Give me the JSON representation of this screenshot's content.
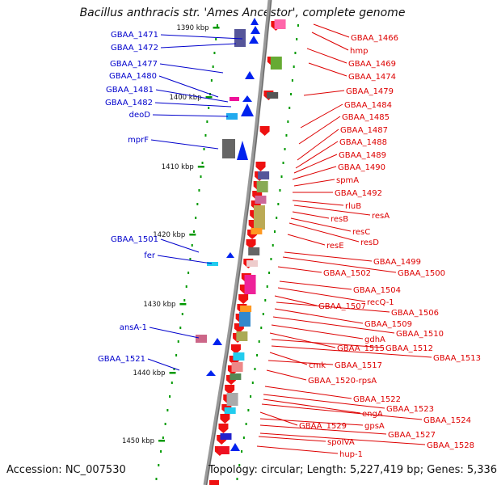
{
  "title": "Bacillus anthracis str. 'Ames Ancestor', complete genome",
  "accession_label": "Accession: NC_007530",
  "topology_label": "Topology: circular; Length: 5,227,419 bp; Genes: 5,336",
  "colors": {
    "backbone": "#888888",
    "tick": "#009900",
    "forward_text": "#0000cc",
    "reverse_text": "#dd0000",
    "forward_gene": "#0022ee",
    "reverse_gene": "#ee1111"
  },
  "scale": {
    "tick_labels": [
      "1390 kbp",
      "1400 kbp",
      "1410 kbp",
      "1420 kbp",
      "1430 kbp",
      "1440 kbp",
      "1450 kbp"
    ]
  },
  "forward_labels": [
    "GBAA_1471",
    "GBAA_1472",
    "GBAA_1477",
    "GBAA_1480",
    "GBAA_1481",
    "GBAA_1482",
    "deoD",
    "mprF",
    "GBAA_1501",
    "fer",
    "ansA-1",
    "GBAA_1521"
  ],
  "reverse_labels": [
    "GBAA_1466",
    "hmp",
    "GBAA_1469",
    "GBAA_1474",
    "GBAA_1479",
    "GBAA_1484",
    "GBAA_1485",
    "GBAA_1487",
    "GBAA_1488",
    "GBAA_1489",
    "GBAA_1490",
    "spmA",
    "GBAA_1492",
    "rluB",
    "resA",
    "resB",
    "resC",
    "resD",
    "resE",
    "GBAA_1499",
    "GBAA_1500",
    "GBAA_1502",
    "GBAA_1504",
    "recQ-1",
    "GBAA_1507",
    "GBAA_1506",
    "GBAA_1509",
    "GBAA_1510",
    "gdhA",
    "GBAA_1515",
    "GBAA_1512",
    "GBAA_1513",
    "cmk",
    "GBAA_1517",
    "GBAA_1520-rpsA",
    "GBAA_1522",
    "GBAA_1523",
    "engA",
    "GBAA_1524",
    "GBAA_1529",
    "gpsA",
    "GBAA_1527",
    "GBAA_1528",
    "spoIVA",
    "hup-1"
  ]
}
